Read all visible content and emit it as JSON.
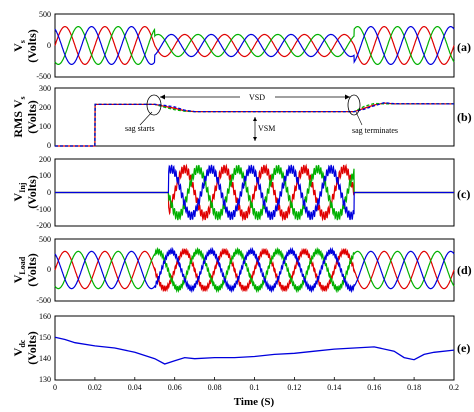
{
  "chart_data": [
    {
      "id": "a",
      "type": "line",
      "panel_label": "(a)",
      "ylabel": "Vs (Volts)",
      "ylim": [
        -500,
        500
      ],
      "yticks": [
        -500,
        0,
        500
      ],
      "x_range": [
        0,
        0.2
      ],
      "series": [
        {
          "color": "#e00000",
          "phase": 0,
          "segments": [
            [
              0,
              0.05,
              300
            ],
            [
              0.05,
              0.15,
              175
            ],
            [
              0.15,
              0.2,
              300
            ]
          ]
        },
        {
          "color": "#00b000",
          "phase": -120,
          "segments": [
            [
              0,
              0.05,
              300
            ],
            [
              0.05,
              0.15,
              175
            ],
            [
              0.15,
              0.2,
              300
            ]
          ]
        },
        {
          "color": "#0000dd",
          "phase": 120,
          "segments": [
            [
              0,
              0.05,
              300
            ],
            [
              0.05,
              0.15,
              175
            ],
            [
              0.15,
              0.2,
              300
            ]
          ]
        }
      ]
    },
    {
      "id": "b",
      "type": "line",
      "panel_label": "(b)",
      "ylabel": "RMS Vs (Volts)",
      "ylim": [
        0,
        300
      ],
      "yticks": [
        0,
        100,
        200,
        300
      ],
      "x_range": [
        0,
        0.2
      ],
      "series": [
        {
          "color": "#e00000",
          "points": [
            [
              0,
              0
            ],
            [
              0.02,
              0
            ],
            [
              0.0201,
              215
            ],
            [
              0.05,
              215
            ],
            [
              0.055,
              205
            ],
            [
              0.06,
              195
            ],
            [
              0.065,
              182
            ],
            [
              0.07,
              178
            ],
            [
              0.15,
              178
            ],
            [
              0.155,
              195
            ],
            [
              0.16,
              212
            ],
            [
              0.165,
              222
            ],
            [
              0.17,
              218
            ],
            [
              0.2,
              218
            ]
          ]
        },
        {
          "color": "#00b000",
          "points": [
            [
              0,
              0
            ],
            [
              0.02,
              0
            ],
            [
              0.0201,
              215
            ],
            [
              0.05,
              215
            ],
            [
              0.055,
              200
            ],
            [
              0.06,
              188
            ],
            [
              0.065,
              180
            ],
            [
              0.07,
              178
            ],
            [
              0.15,
              178
            ],
            [
              0.155,
              205
            ],
            [
              0.16,
              220
            ],
            [
              0.165,
              218
            ],
            [
              0.17,
              218
            ],
            [
              0.2,
              218
            ]
          ]
        },
        {
          "color": "#0000dd",
          "points": [
            [
              0,
              0
            ],
            [
              0.02,
              0
            ],
            [
              0.0201,
              215
            ],
            [
              0.05,
              215
            ],
            [
              0.055,
              210
            ],
            [
              0.06,
              202
            ],
            [
              0.065,
              185
            ],
            [
              0.07,
              178
            ],
            [
              0.15,
              178
            ],
            [
              0.155,
              190
            ],
            [
              0.16,
              208
            ],
            [
              0.165,
              224
            ],
            [
              0.17,
              219
            ],
            [
              0.2,
              218
            ]
          ]
        }
      ],
      "annotations": {
        "vsd": "VSD",
        "vsm": "VSM",
        "sag_start": "sag starts",
        "sag_end": "sag terminates"
      }
    },
    {
      "id": "c",
      "type": "line",
      "panel_label": "(c)",
      "ylabel": "VInj (Volts)",
      "ylim": [
        -200,
        200
      ],
      "yticks": [
        -200,
        -100,
        0,
        100,
        200
      ],
      "x_range": [
        0,
        0.2
      ],
      "series": [
        {
          "color": "#e00000",
          "phase": 0,
          "segments": [
            [
              0,
              0.057,
              0
            ],
            [
              0.057,
              0.15,
              140
            ],
            [
              0.15,
              0.2,
              0
            ]
          ]
        },
        {
          "color": "#00b000",
          "phase": -120,
          "segments": [
            [
              0,
              0.057,
              0
            ],
            [
              0.057,
              0.15,
              140
            ],
            [
              0.15,
              0.2,
              0
            ]
          ]
        },
        {
          "color": "#0000dd",
          "phase": 120,
          "segments": [
            [
              0,
              0.057,
              0
            ],
            [
              0.057,
              0.15,
              140
            ],
            [
              0.15,
              0.2,
              0
            ]
          ]
        }
      ]
    },
    {
      "id": "d",
      "type": "line",
      "panel_label": "(d)",
      "ylabel": "VLoad (Volts)",
      "ylim": [
        -500,
        500
      ],
      "yticks": [
        -500,
        0,
        500
      ],
      "x_range": [
        0,
        0.2
      ],
      "series": [
        {
          "color": "#e00000",
          "phase": 0,
          "segments": [
            [
              0,
              0.2,
              300
            ]
          ]
        },
        {
          "color": "#00b000",
          "phase": -120,
          "segments": [
            [
              0,
              0.2,
              300
            ]
          ]
        },
        {
          "color": "#0000dd",
          "phase": 120,
          "segments": [
            [
              0,
              0.2,
              300
            ]
          ]
        }
      ]
    },
    {
      "id": "e",
      "type": "line",
      "panel_label": "(e)",
      "ylabel": "Vdc (Volts)",
      "ylim": [
        130,
        160
      ],
      "yticks": [
        130,
        140,
        150,
        160
      ],
      "x_range": [
        0,
        0.2
      ],
      "xticks": [
        "0",
        "0.02",
        "0.04",
        "0.06",
        "0.08",
        "0.1",
        "0.12",
        "0.14",
        "0.16",
        "0.18",
        "0.2"
      ],
      "xlabel": "Time (S)",
      "series": [
        {
          "color": "#0000dd",
          "points": [
            [
              0,
              150
            ],
            [
              0.005,
              149
            ],
            [
              0.01,
              147.5
            ],
            [
              0.02,
              146
            ],
            [
              0.03,
              145
            ],
            [
              0.04,
              143
            ],
            [
              0.05,
              140
            ],
            [
              0.055,
              137.5
            ],
            [
              0.06,
              139
            ],
            [
              0.065,
              140.5
            ],
            [
              0.07,
              140
            ],
            [
              0.08,
              140.5
            ],
            [
              0.09,
              140.5
            ],
            [
              0.1,
              141
            ],
            [
              0.11,
              142
            ],
            [
              0.12,
              142.5
            ],
            [
              0.13,
              143.5
            ],
            [
              0.14,
              144.5
            ],
            [
              0.15,
              145
            ],
            [
              0.16,
              145.5
            ],
            [
              0.17,
              143.5
            ],
            [
              0.175,
              140.5
            ],
            [
              0.18,
              139.5
            ],
            [
              0.185,
              142
            ],
            [
              0.19,
              143
            ],
            [
              0.2,
              144
            ]
          ]
        }
      ]
    }
  ],
  "labels": {
    "a_y1": "V",
    "a_y1_sub": "s",
    "a_y2": "(Volts)",
    "b_y1": "RMS V",
    "b_y1_sub": "s",
    "b_y2": "(Volts)",
    "c_y1": "V",
    "c_y1_sub": "Inj",
    "c_y2": "(Volts)",
    "d_y1": "V",
    "d_y1_sub": "Load",
    "d_y2": "(Volts)",
    "e_y1": "V",
    "e_y1_sub": "dc",
    "e_y2": "(Volts)"
  }
}
